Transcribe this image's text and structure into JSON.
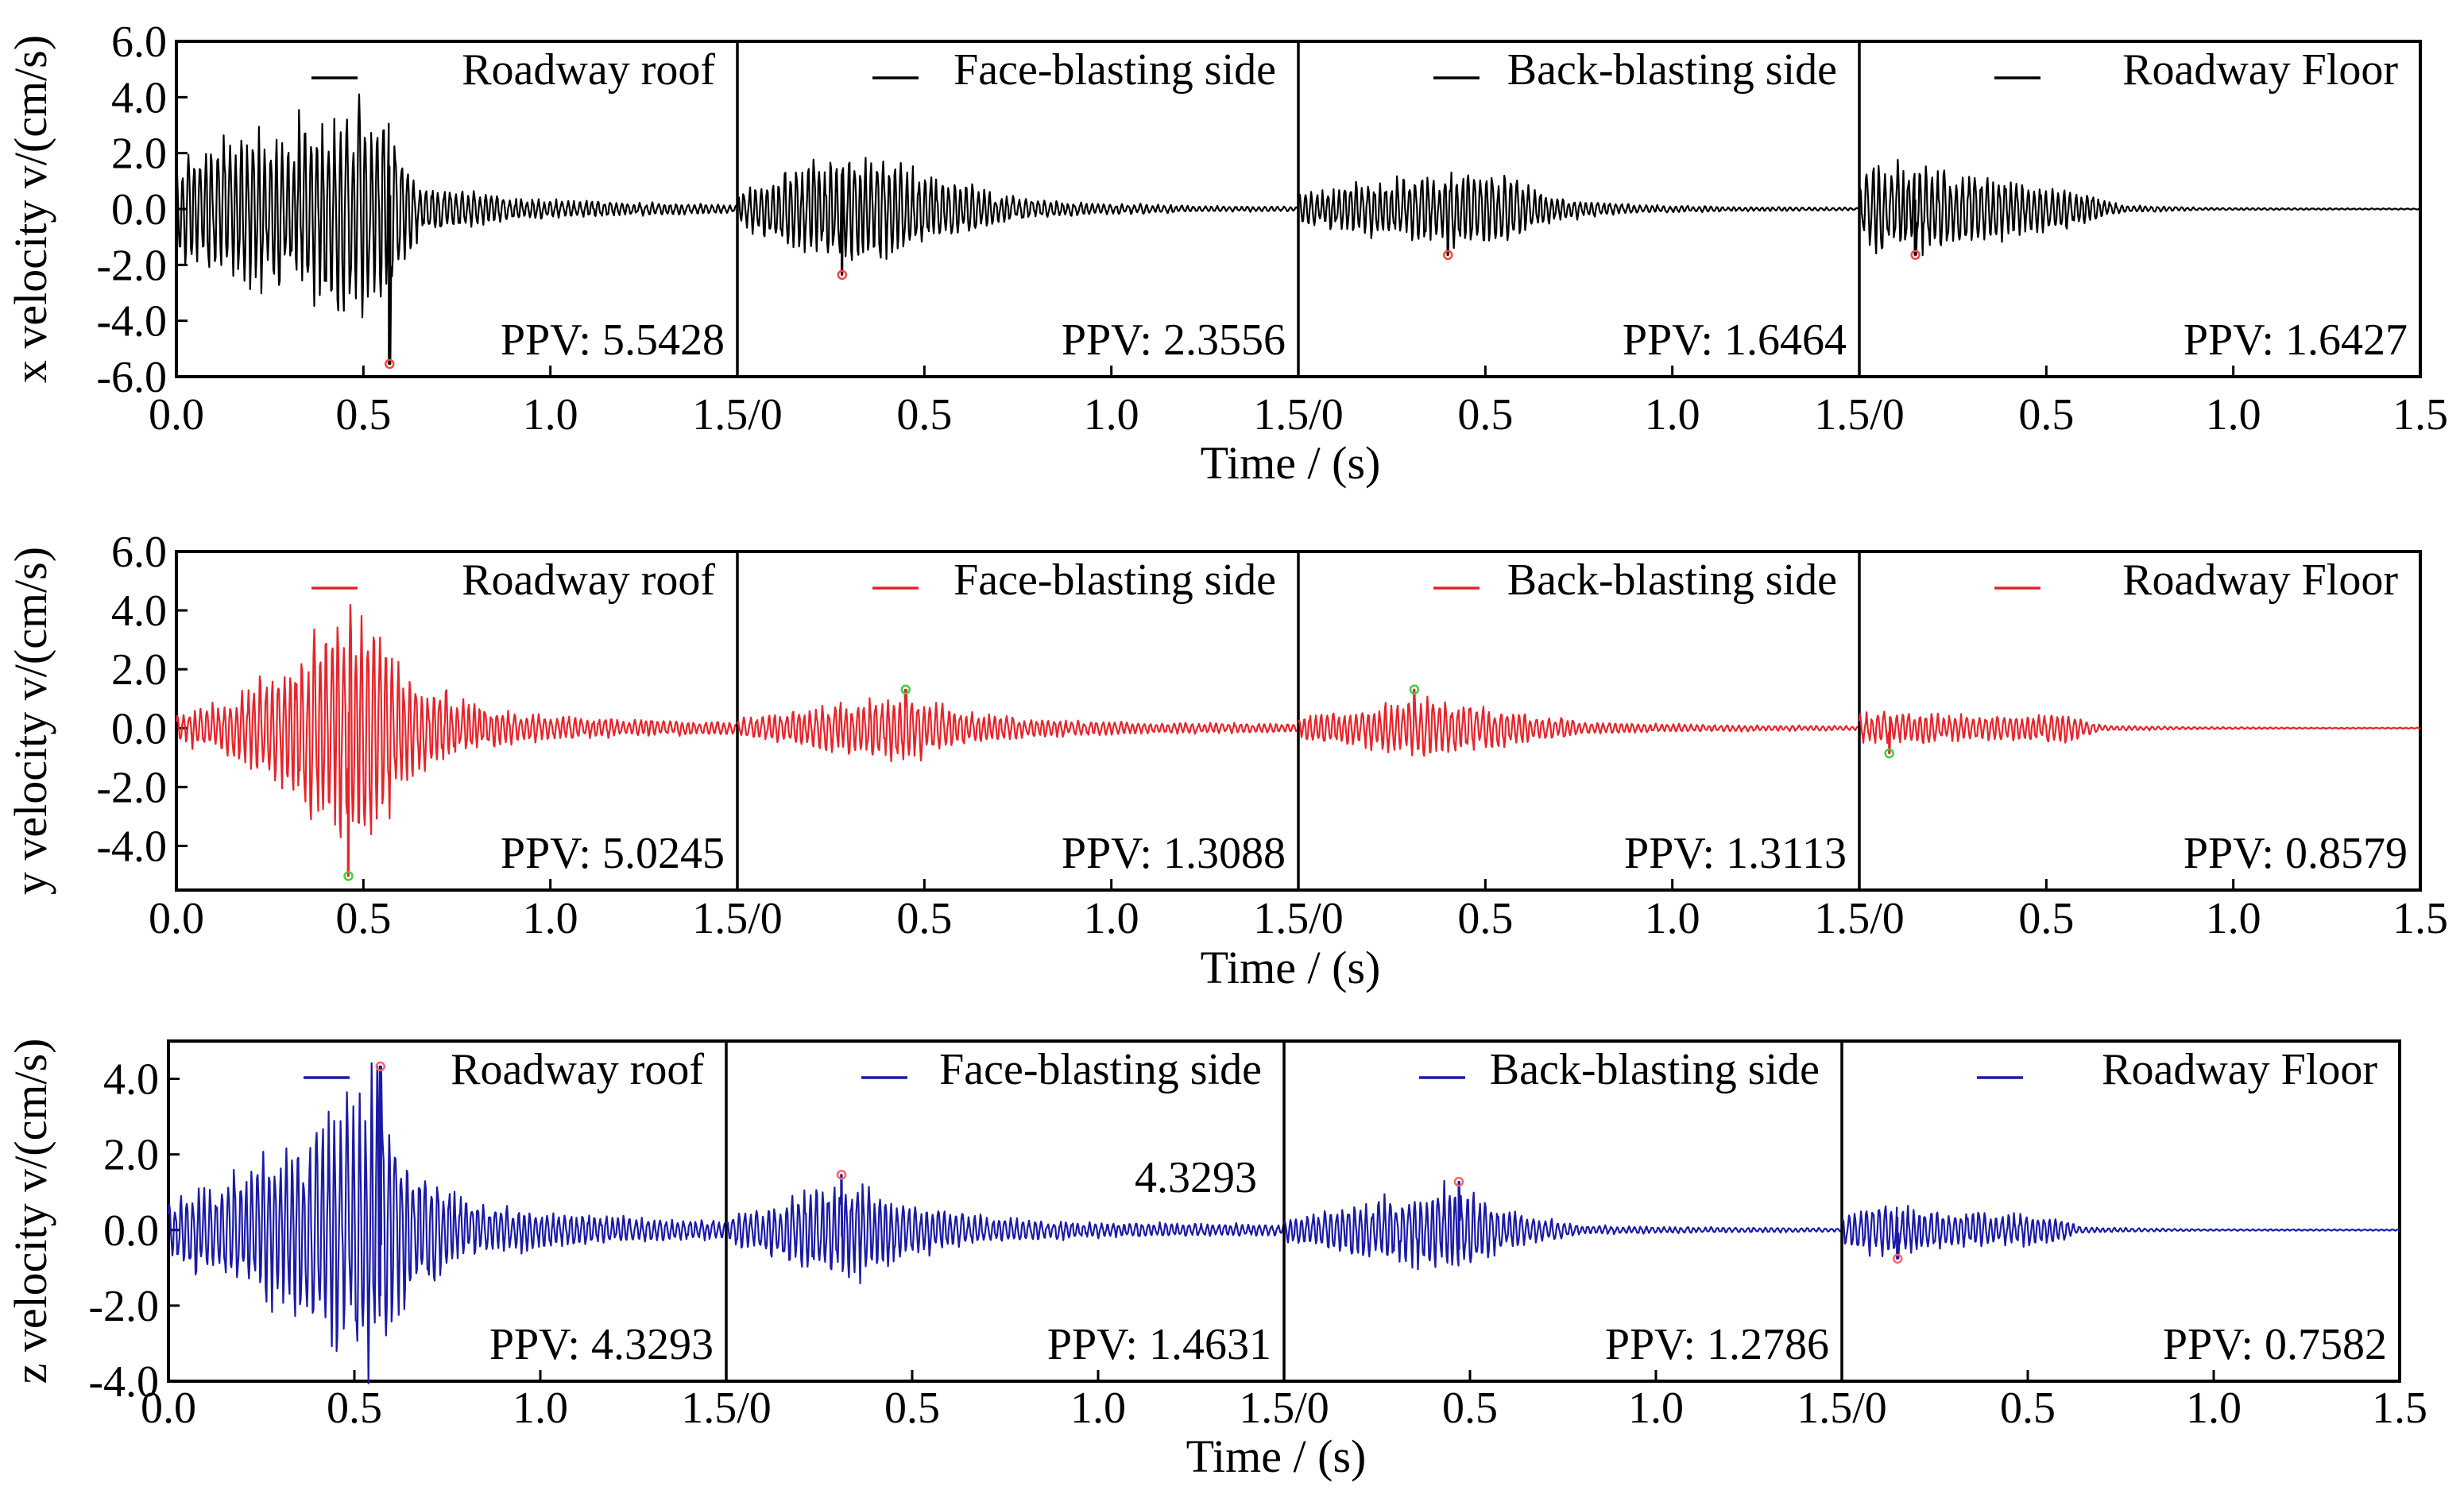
{
  "chart_data": [
    {
      "type": "line",
      "component": "x",
      "ylabel": "x velocity  v/(cm/s)",
      "xlabel": "Time / (s)",
      "color": "#000000",
      "ylim": [
        -6.0,
        6.0
      ],
      "yticks": [
        {
          "value": -6.0,
          "label": "-6.0"
        },
        {
          "value": -4.0,
          "label": "-4.0"
        },
        {
          "value": -2.0,
          "label": "-2.0"
        },
        {
          "value": 0.0,
          "label": "0.0"
        },
        {
          "value": 2.0,
          "label": "2.0"
        },
        {
          "value": 4.0,
          "label": "4.0"
        },
        {
          "value": 6.0,
          "label": "6.0"
        }
      ],
      "xlim": [
        0,
        1.5
      ],
      "xtick_labels": [
        "0.0",
        "0.5",
        "1.0",
        "1.5/0",
        "0.5",
        "1.0",
        "1.5/0",
        "0.5",
        "1.0",
        "1.5/0",
        "0.5",
        "1.0",
        "1.5"
      ],
      "series": [
        {
          "name": "Roadway roof",
          "ppv": "PPV: 5.5428",
          "envelope": [
            [
              0.0,
              1.8
            ],
            [
              0.15,
              2.6
            ],
            [
              0.3,
              3.2
            ],
            [
              0.45,
              3.5
            ],
            [
              0.5,
              4.3
            ],
            [
              0.57,
              3.0
            ],
            [
              0.65,
              1.0
            ],
            [
              0.9,
              0.4
            ],
            [
              1.2,
              0.25
            ],
            [
              1.5,
              0.15
            ]
          ],
          "peak": {
            "t": 0.57,
            "v": -5.5428
          },
          "peak_color": "#ff4444"
        },
        {
          "name": "Face-blasting side",
          "ppv": "PPV: 2.3556",
          "envelope": [
            [
              0.0,
              0.6
            ],
            [
              0.1,
              1.3
            ],
            [
              0.25,
              1.9
            ],
            [
              0.4,
              1.8
            ],
            [
              0.55,
              1.2
            ],
            [
              0.7,
              0.5
            ],
            [
              0.9,
              0.25
            ],
            [
              1.2,
              0.12
            ],
            [
              1.5,
              0.08
            ]
          ],
          "peak": {
            "t": 0.28,
            "v": -2.3556
          },
          "peak_color": "#ff4444"
        },
        {
          "name": "Back-blasting side",
          "ppv": "PPV: 1.6464",
          "envelope": [
            [
              0.0,
              0.6
            ],
            [
              0.15,
              0.9
            ],
            [
              0.3,
              1.2
            ],
            [
              0.45,
              1.5
            ],
            [
              0.55,
              1.3
            ],
            [
              0.7,
              0.4
            ],
            [
              0.9,
              0.15
            ],
            [
              1.2,
              0.08
            ],
            [
              1.5,
              0.05
            ]
          ],
          "peak": {
            "t": 0.4,
            "v": -1.6464
          },
          "peak_color": "#ff4444"
        },
        {
          "name": "Roadway Floor",
          "ppv": "PPV: 1.6427",
          "envelope": [
            [
              0.0,
              1.4
            ],
            [
              0.15,
              1.6
            ],
            [
              0.3,
              1.3
            ],
            [
              0.45,
              1.0
            ],
            [
              0.6,
              0.6
            ],
            [
              0.7,
              0.15
            ],
            [
              0.9,
              0.05
            ],
            [
              1.2,
              0.03
            ],
            [
              1.5,
              0.02
            ]
          ],
          "peak": {
            "t": 0.15,
            "v": -1.6427
          },
          "peak_color": "#ff4444"
        }
      ]
    },
    {
      "type": "line",
      "component": "y",
      "ylabel": "y velocity v/(cm/s)",
      "xlabel": "Time / (s)",
      "color": "#e8232a",
      "ylim": [
        -5.5,
        6.0
      ],
      "yticks": [
        {
          "value": -4.0,
          "label": "-4.0"
        },
        {
          "value": -2.0,
          "label": "-2.0"
        },
        {
          "value": 0.0,
          "label": "0.0"
        },
        {
          "value": 2.0,
          "label": "2.0"
        },
        {
          "value": 4.0,
          "label": "4.0"
        },
        {
          "value": 6.0,
          "label": "6.0"
        }
      ],
      "xlim": [
        0,
        1.5
      ],
      "xtick_labels": [
        "0.0",
        "0.5",
        "1.0",
        "1.5/0",
        "0.5",
        "1.0",
        "1.5/0",
        "0.5",
        "1.0",
        "1.5/0",
        "0.5",
        "1.0",
        "1.5"
      ],
      "series": [
        {
          "name": "Roadway roof",
          "ppv": "PPV: 5.0245",
          "envelope": [
            [
              0.0,
              0.5
            ],
            [
              0.15,
              1.0
            ],
            [
              0.3,
              2.5
            ],
            [
              0.42,
              3.5
            ],
            [
              0.5,
              4.6
            ],
            [
              0.6,
              2.0
            ],
            [
              0.75,
              1.0
            ],
            [
              0.9,
              0.5
            ],
            [
              1.2,
              0.3
            ],
            [
              1.5,
              0.2
            ]
          ],
          "peak": {
            "t": 0.46,
            "v": -5.0245
          },
          "peak_color": "#44cc44"
        },
        {
          "name": "Face-blasting side",
          "ppv": "PPV: 1.3088",
          "envelope": [
            [
              0.0,
              0.3
            ],
            [
              0.15,
              0.6
            ],
            [
              0.3,
              0.9
            ],
            [
              0.45,
              1.2
            ],
            [
              0.6,
              0.6
            ],
            [
              0.8,
              0.3
            ],
            [
              1.1,
              0.2
            ],
            [
              1.5,
              0.15
            ]
          ],
          "peak": {
            "t": 0.45,
            "v": 1.3088
          },
          "peak_color": "#44cc44"
        },
        {
          "name": "Back-blasting side",
          "ppv": "PPV: 1.3113",
          "envelope": [
            [
              0.0,
              0.4
            ],
            [
              0.15,
              0.6
            ],
            [
              0.3,
              1.0
            ],
            [
              0.45,
              0.9
            ],
            [
              0.6,
              0.5
            ],
            [
              0.8,
              0.2
            ],
            [
              1.1,
              0.12
            ],
            [
              1.5,
              0.08
            ]
          ],
          "peak": {
            "t": 0.31,
            "v": 1.3113
          },
          "peak_color": "#44cc44"
        },
        {
          "name": "Roadway Floor",
          "ppv": "PPV: 0.8579",
          "envelope": [
            [
              0.0,
              0.5
            ],
            [
              0.1,
              0.6
            ],
            [
              0.3,
              0.4
            ],
            [
              0.55,
              0.5
            ],
            [
              0.65,
              0.1
            ],
            [
              0.9,
              0.04
            ],
            [
              1.2,
              0.02
            ],
            [
              1.5,
              0.02
            ]
          ],
          "peak": {
            "t": 0.08,
            "v": -0.8579
          },
          "peak_color": "#44cc44"
        }
      ]
    },
    {
      "type": "line",
      "component": "z",
      "ylabel": "z velocity v/(cm/s)",
      "xlabel": "Time / (s)",
      "color": "#1a1aa8",
      "ylim": [
        -4.0,
        5.0
      ],
      "yticks": [
        {
          "value": -4.0,
          "label": "-4.0"
        },
        {
          "value": -2.0,
          "label": "-2.0"
        },
        {
          "value": 0.0,
          "label": "0.0"
        },
        {
          "value": 2.0,
          "label": "2.0"
        },
        {
          "value": 4.0,
          "label": "4.0"
        }
      ],
      "xlim": [
        0,
        1.5
      ],
      "xtick_labels": [
        "0.0",
        "0.5",
        "1.0",
        "1.5/0",
        "0.5",
        "1.0",
        "1.5/0",
        "0.5",
        "1.0",
        "1.5/0",
        "0.5",
        "1.0",
        "1.5"
      ],
      "annotation": "4.3293",
      "series": [
        {
          "name": "Roadway roof",
          "ppv": "PPV: 4.3293",
          "envelope": [
            [
              0.0,
              0.8
            ],
            [
              0.15,
              1.4
            ],
            [
              0.3,
              2.2
            ],
            [
              0.42,
              3.0
            ],
            [
              0.55,
              4.3
            ],
            [
              0.65,
              1.8
            ],
            [
              0.8,
              0.8
            ],
            [
              1.0,
              0.5
            ],
            [
              1.2,
              0.35
            ],
            [
              1.5,
              0.25
            ]
          ],
          "peak": {
            "t": 0.57,
            "v": 4.3293
          },
          "peak_color": "#ff6666"
        },
        {
          "name": "Face-blasting side",
          "ppv": "PPV: 1.4631",
          "envelope": [
            [
              0.0,
              0.4
            ],
            [
              0.1,
              0.6
            ],
            [
              0.25,
              1.2
            ],
            [
              0.35,
              1.4
            ],
            [
              0.5,
              0.7
            ],
            [
              0.7,
              0.35
            ],
            [
              1.0,
              0.2
            ],
            [
              1.5,
              0.15
            ]
          ],
          "peak": {
            "t": 0.31,
            "v": 1.4631
          },
          "peak_color": "#ff6666"
        },
        {
          "name": "Back-blasting side",
          "ppv": "PPV: 1.2786",
          "envelope": [
            [
              0.0,
              0.3
            ],
            [
              0.15,
              0.6
            ],
            [
              0.3,
              0.9
            ],
            [
              0.45,
              1.2
            ],
            [
              0.6,
              0.5
            ],
            [
              0.8,
              0.12
            ],
            [
              1.1,
              0.08
            ],
            [
              1.5,
              0.05
            ]
          ],
          "peak": {
            "t": 0.47,
            "v": 1.2786
          },
          "peak_color": "#ff6666"
        },
        {
          "name": "Roadway Floor",
          "ppv": "PPV: 0.7582",
          "envelope": [
            [
              0.0,
              0.4
            ],
            [
              0.1,
              0.7
            ],
            [
              0.3,
              0.5
            ],
            [
              0.55,
              0.4
            ],
            [
              0.65,
              0.08
            ],
            [
              0.9,
              0.03
            ],
            [
              1.2,
              0.02
            ],
            [
              1.5,
              0.02
            ]
          ],
          "peak": {
            "t": 0.15,
            "v": -0.7582
          },
          "peak_color": "#ff6666"
        }
      ]
    }
  ]
}
